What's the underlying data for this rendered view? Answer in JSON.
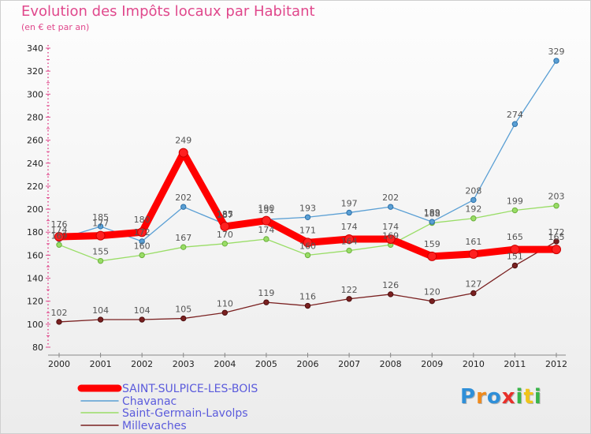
{
  "header": {
    "title": "Evolution des Impôts locaux par Habitant",
    "subtitle": "(en € et par an)"
  },
  "logo": {
    "text": "Proxiti",
    "letters": [
      "P",
      "r",
      "o",
      "x",
      "i",
      "t",
      "i"
    ],
    "colors": [
      "#2f8fd8",
      "#f08a1c",
      "#2f8fd8",
      "#e8302a",
      "#39b54a",
      "#f0c419",
      "#39b54a"
    ]
  },
  "chart_data": {
    "type": "line",
    "title": "Evolution des Impôts locaux par Habitant",
    "subtitle": "(en € et par an)",
    "xlabel": "",
    "ylabel": "",
    "x": [
      "2000",
      "2001",
      "2002",
      "2003",
      "2004",
      "2005",
      "2006",
      "2007",
      "2008",
      "2009",
      "2010",
      "2011",
      "2012"
    ],
    "ylim": [
      80,
      340
    ],
    "yticks": [
      "80",
      "100",
      "120",
      "140",
      "160",
      "180",
      "200",
      "220",
      "240",
      "260",
      "280",
      "300",
      "320",
      "340"
    ],
    "grid": "none",
    "legend_position": "bottom-left",
    "series": [
      {
        "name": "SAINT-SULPICE-LES-BOIS",
        "color": "#ff0000",
        "values": [
          176,
          177,
          180,
          249,
          185,
          190,
          171,
          174,
          174,
          159,
          161,
          165,
          165
        ],
        "labels": [
          "176",
          "177",
          "180",
          "249",
          "185",
          "190",
          "171",
          "174",
          "174",
          "159",
          "161",
          "165",
          "165"
        ]
      },
      {
        "name": "Chavanac",
        "color": "#5a9fd4",
        "values": [
          174,
          185,
          172,
          202,
          187,
          191,
          193,
          197,
          202,
          189,
          208,
          274,
          329
        ],
        "labels": [
          "174",
          "185",
          "172",
          "202",
          "187",
          "191",
          "193",
          "197",
          "202",
          "189",
          "208",
          "274",
          "329"
        ]
      },
      {
        "name": "Saint-Germain-Lavolps",
        "color": "#99dd66",
        "values": [
          169,
          155,
          160,
          167,
          170,
          174,
          160,
          164,
          169,
          188,
          192,
          199,
          203
        ],
        "labels": [
          "169",
          "155",
          "160",
          "167",
          "170",
          "174",
          "160",
          "164",
          "169",
          "188",
          "192",
          "199",
          "203"
        ]
      },
      {
        "name": "Millevaches",
        "color": "#7a2020",
        "values": [
          102,
          104,
          104,
          105,
          110,
          119,
          116,
          122,
          126,
          120,
          127,
          151,
          172
        ],
        "labels": [
          "102",
          "104",
          "104",
          "105",
          "110",
          "119",
          "116",
          "122",
          "126",
          "120",
          "127",
          "151",
          "172"
        ]
      }
    ]
  }
}
